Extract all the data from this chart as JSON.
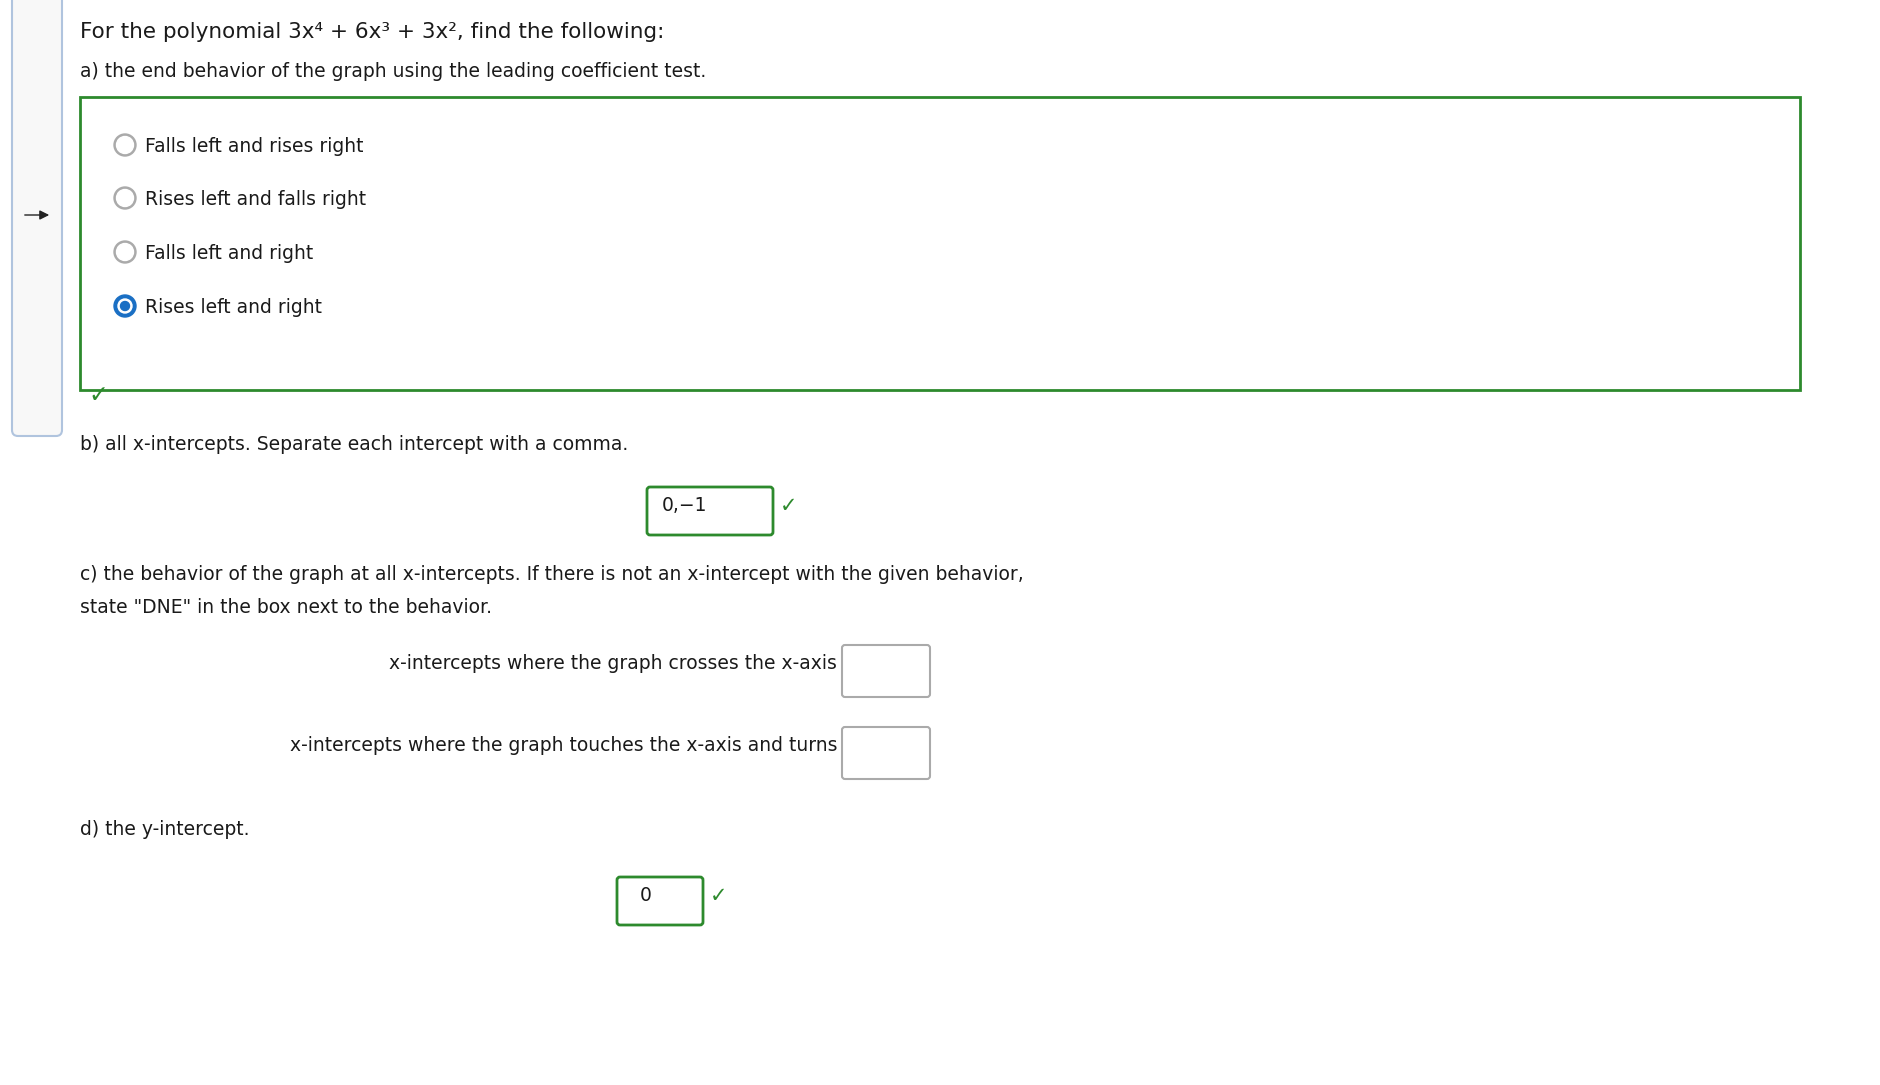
{
  "bg_color": "#ffffff",
  "title_text": "For the polynomial 3x⁴ + 6x³ + 3x², find the following:",
  "section_a_label": "a) the end behavior of the graph using the leading coefficient test.",
  "options": [
    "Falls left and rises right",
    "Rises left and falls right",
    "Falls left and right",
    "Rises left and right"
  ],
  "selected_option": 3,
  "section_b_label": "b) all x-intercepts. Separate each intercept with a comma.",
  "answer_b": "0,−1",
  "section_c_label_line1": "c) the behavior of the graph at all x-intercepts. If there is not an x-intercept with the given behavior,",
  "section_c_label_line2": "state \"DNE\" in the box next to the behavior.",
  "c_item1": "x-intercepts where the graph crosses the x-axis",
  "c_item2": "x-intercepts where the graph touches the x-axis and turns",
  "section_d_label": "d) the y-intercept.",
  "answer_d": "0",
  "green_color": "#2d8a2d",
  "box_green": "#2d8a2d",
  "radio_unselected_color": "#aaaaaa",
  "radio_selected_blue": "#1a6fc4",
  "text_color": "#1a1a1a",
  "gray_box_color": "#aaaaaa",
  "checkmark_color": "#2d8a2d",
  "sidebar_border": "#b0c4de",
  "sidebar_fill": "#f8f8f8",
  "arrow_color": "#222222",
  "font_size_title": 15.5,
  "font_size_body": 13.5,
  "font_size_options": 13.5
}
